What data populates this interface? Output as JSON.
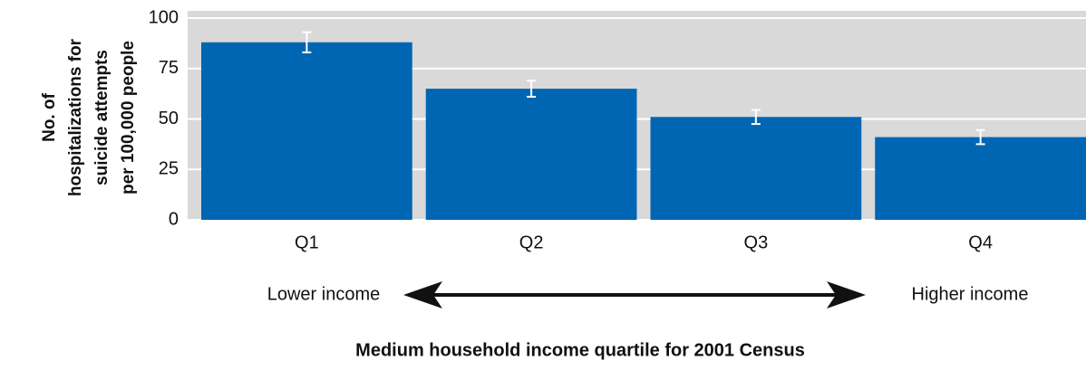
{
  "chart_data": {
    "type": "bar",
    "categories": [
      "Q1",
      "Q2",
      "Q3",
      "Q4"
    ],
    "values": [
      88,
      65,
      51,
      41
    ],
    "errors": [
      5,
      4,
      3.5,
      3.5
    ],
    "color": "#0066b3",
    "ylim": [
      0,
      100
    ],
    "yticks": [
      0,
      25,
      50,
      75,
      100
    ],
    "grid": true,
    "ylabel": [
      "No. of",
      "hospitalizations for",
      "suicide attempts",
      "per 100,000 people"
    ],
    "annotations": [
      "Lower income",
      "Higher income"
    ],
    "xlabel": "Medium household income quartile for 2001 Census"
  }
}
